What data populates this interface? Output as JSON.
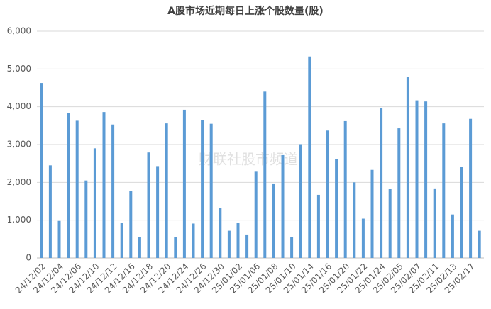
{
  "chart_data": {
    "type": "bar",
    "title": "A股市场近期每日上涨个股数量(股)",
    "watermark": "财联社股市频道",
    "categories": [
      "24/12/02",
      null,
      "24/12/04",
      null,
      "24/12/06",
      null,
      "24/12/10",
      null,
      "24/12/12",
      null,
      "24/12/16",
      null,
      "24/12/18",
      null,
      "24/12/20",
      null,
      "24/12/24",
      null,
      "24/12/26",
      null,
      "24/12/30",
      null,
      "25/01/02",
      null,
      "25/01/06",
      null,
      "25/01/08",
      null,
      "25/01/10",
      null,
      "25/01/14",
      null,
      "25/01/16",
      null,
      "25/01/20",
      null,
      "25/01/22",
      null,
      "25/01/24",
      null,
      "25/02/05",
      null,
      "25/02/07",
      null,
      "25/02/11",
      null,
      "25/02/13",
      null,
      "25/02/17",
      null
    ],
    "values": [
      4630,
      2450,
      980,
      3830,
      3630,
      2050,
      2900,
      3860,
      3530,
      920,
      1780,
      560,
      2790,
      2430,
      3560,
      560,
      3920,
      910,
      3650,
      3550,
      1320,
      720,
      920,
      620,
      2300,
      4400,
      1970,
      2720,
      550,
      3010,
      5330,
      1670,
      3370,
      2620,
      3620,
      2000,
      1040,
      2330,
      3960,
      1820,
      3430,
      4790,
      4170,
      4140,
      1840,
      3560,
      1150,
      2400,
      3680,
      720
    ],
    "color": "#5b9bd5",
    "ylim": [
      0,
      6000
    ],
    "yticks": [
      0,
      {
        "value": 1000,
        "label": "1,000"
      },
      {
        "value": 2000,
        "label": "2,000"
      },
      {
        "value": 3000,
        "label": "3,000"
      },
      {
        "value": 4000,
        "label": "4,000"
      },
      {
        "value": 5000,
        "label": "5,000"
      },
      {
        "value": 6000,
        "label": "6,000"
      }
    ],
    "grid": true
  }
}
